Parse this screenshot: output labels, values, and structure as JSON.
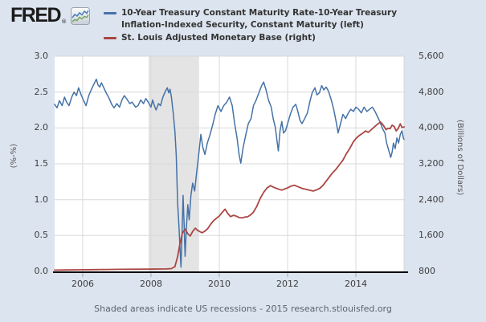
{
  "header": {
    "logo_text": "FRED",
    "logo_registered": "®",
    "legend": [
      {
        "lines": [
          "10-Year Treasury Constant Maturity Rate-10-Year Treasury",
          "Inflation-Indexed Security, Constant Maturity (left)"
        ]
      },
      {
        "lines": [
          "St. Louis Adjusted Monetary Base (right)"
        ]
      }
    ]
  },
  "footer": {
    "note": "Shaded areas indicate US recessions - 2015 research.stlouisfed.org"
  },
  "colors": {
    "page_bg": "#dce4ef",
    "series_blue": "#4572a7",
    "series_red": "#aa4643",
    "plot_bg": "#ffffff",
    "recession_band": "#e4e4e4",
    "gridline": "#d9d9d9",
    "axis_line": "#000000"
  },
  "chart_data": {
    "type": "line",
    "title": "",
    "x_axis": {
      "range": [
        2005.18,
        2015.41
      ],
      "tick_values": [
        2006,
        2008,
        2010,
        2012,
        2014
      ],
      "tick_labels": [
        "2006",
        "2008",
        "2010",
        "2012",
        "2014"
      ]
    },
    "left_axis": {
      "title": "(%-%)",
      "range": [
        0.0,
        3.0
      ],
      "tick_values": [
        3.0,
        2.5,
        2.0,
        1.5,
        1.0,
        0.5,
        0.0
      ],
      "tick_labels": [
        "3.0",
        "2.5",
        "2.0",
        "1.5",
        "1.0",
        "0.5",
        "0.0"
      ]
    },
    "right_axis": {
      "title": "(Billions of Dollars)",
      "range": [
        800,
        5600
      ],
      "tick_values": [
        5600,
        4800,
        4000,
        3200,
        2400,
        1600,
        800
      ],
      "tick_labels": [
        "5,600",
        "4,800",
        "4,000",
        "3,200",
        "2,400",
        "1,600",
        "800"
      ]
    },
    "recession_bands": [
      [
        2007.93,
        2009.41
      ]
    ],
    "grid": true,
    "legend_position": "top",
    "series": [
      {
        "name": "10-Year Treasury Constant Maturity Rate-10-Year Treasury Inflation-Indexed Security, Constant Maturity (left)",
        "axis": "left",
        "color": "#4572a7",
        "points": [
          [
            2005.18,
            2.33
          ],
          [
            2005.25,
            2.28
          ],
          [
            2005.32,
            2.38
          ],
          [
            2005.4,
            2.31
          ],
          [
            2005.47,
            2.43
          ],
          [
            2005.53,
            2.36
          ],
          [
            2005.6,
            2.31
          ],
          [
            2005.68,
            2.43
          ],
          [
            2005.75,
            2.5
          ],
          [
            2005.82,
            2.45
          ],
          [
            2005.88,
            2.56
          ],
          [
            2005.95,
            2.47
          ],
          [
            2006.02,
            2.39
          ],
          [
            2006.1,
            2.31
          ],
          [
            2006.18,
            2.45
          ],
          [
            2006.25,
            2.53
          ],
          [
            2006.32,
            2.6
          ],
          [
            2006.4,
            2.68
          ],
          [
            2006.45,
            2.6
          ],
          [
            2006.5,
            2.57
          ],
          [
            2006.55,
            2.63
          ],
          [
            2006.62,
            2.56
          ],
          [
            2006.7,
            2.48
          ],
          [
            2006.78,
            2.41
          ],
          [
            2006.85,
            2.33
          ],
          [
            2006.92,
            2.28
          ],
          [
            2007.0,
            2.34
          ],
          [
            2007.08,
            2.29
          ],
          [
            2007.15,
            2.39
          ],
          [
            2007.22,
            2.45
          ],
          [
            2007.3,
            2.4
          ],
          [
            2007.38,
            2.34
          ],
          [
            2007.45,
            2.36
          ],
          [
            2007.55,
            2.29
          ],
          [
            2007.62,
            2.31
          ],
          [
            2007.7,
            2.39
          ],
          [
            2007.78,
            2.34
          ],
          [
            2007.85,
            2.41
          ],
          [
            2007.92,
            2.36
          ],
          [
            2008.0,
            2.29
          ],
          [
            2008.05,
            2.39
          ],
          [
            2008.1,
            2.31
          ],
          [
            2008.15,
            2.25
          ],
          [
            2008.22,
            2.34
          ],
          [
            2008.28,
            2.31
          ],
          [
            2008.35,
            2.43
          ],
          [
            2008.42,
            2.51
          ],
          [
            2008.48,
            2.56
          ],
          [
            2008.52,
            2.49
          ],
          [
            2008.56,
            2.54
          ],
          [
            2008.6,
            2.43
          ],
          [
            2008.65,
            2.21
          ],
          [
            2008.7,
            1.96
          ],
          [
            2008.74,
            1.62
          ],
          [
            2008.78,
            0.96
          ],
          [
            2008.82,
            0.62
          ],
          [
            2008.85,
            0.32
          ],
          [
            2008.88,
            0.06
          ],
          [
            2008.91,
            0.52
          ],
          [
            2008.94,
            1.06
          ],
          [
            2008.97,
            0.66
          ],
          [
            2009.0,
            0.21
          ],
          [
            2009.04,
            0.62
          ],
          [
            2009.08,
            0.93
          ],
          [
            2009.12,
            0.72
          ],
          [
            2009.17,
            1.06
          ],
          [
            2009.22,
            1.23
          ],
          [
            2009.28,
            1.12
          ],
          [
            2009.34,
            1.39
          ],
          [
            2009.4,
            1.63
          ],
          [
            2009.46,
            1.91
          ],
          [
            2009.52,
            1.73
          ],
          [
            2009.58,
            1.63
          ],
          [
            2009.65,
            1.79
          ],
          [
            2009.72,
            1.89
          ],
          [
            2009.8,
            2.03
          ],
          [
            2009.88,
            2.19
          ],
          [
            2009.96,
            2.31
          ],
          [
            2010.05,
            2.23
          ],
          [
            2010.13,
            2.31
          ],
          [
            2010.22,
            2.36
          ],
          [
            2010.3,
            2.43
          ],
          [
            2010.38,
            2.31
          ],
          [
            2010.45,
            2.06
          ],
          [
            2010.52,
            1.86
          ],
          [
            2010.58,
            1.63
          ],
          [
            2010.63,
            1.51
          ],
          [
            2010.7,
            1.73
          ],
          [
            2010.78,
            1.91
          ],
          [
            2010.85,
            2.06
          ],
          [
            2010.93,
            2.13
          ],
          [
            2011.0,
            2.31
          ],
          [
            2011.08,
            2.39
          ],
          [
            2011.16,
            2.49
          ],
          [
            2011.24,
            2.59
          ],
          [
            2011.3,
            2.64
          ],
          [
            2011.37,
            2.53
          ],
          [
            2011.44,
            2.39
          ],
          [
            2011.52,
            2.29
          ],
          [
            2011.58,
            2.13
          ],
          [
            2011.64,
            2.01
          ],
          [
            2011.7,
            1.79
          ],
          [
            2011.73,
            1.68
          ],
          [
            2011.78,
            1.96
          ],
          [
            2011.83,
            2.09
          ],
          [
            2011.88,
            1.93
          ],
          [
            2011.94,
            1.96
          ],
          [
            2012.0,
            2.06
          ],
          [
            2012.08,
            2.19
          ],
          [
            2012.16,
            2.29
          ],
          [
            2012.24,
            2.33
          ],
          [
            2012.3,
            2.23
          ],
          [
            2012.36,
            2.11
          ],
          [
            2012.42,
            2.06
          ],
          [
            2012.5,
            2.13
          ],
          [
            2012.58,
            2.21
          ],
          [
            2012.65,
            2.36
          ],
          [
            2012.72,
            2.49
          ],
          [
            2012.8,
            2.56
          ],
          [
            2012.86,
            2.46
          ],
          [
            2012.93,
            2.49
          ],
          [
            2013.0,
            2.59
          ],
          [
            2013.06,
            2.53
          ],
          [
            2013.13,
            2.57
          ],
          [
            2013.2,
            2.51
          ],
          [
            2013.28,
            2.39
          ],
          [
            2013.35,
            2.26
          ],
          [
            2013.42,
            2.09
          ],
          [
            2013.48,
            1.93
          ],
          [
            2013.55,
            2.06
          ],
          [
            2013.62,
            2.19
          ],
          [
            2013.7,
            2.13
          ],
          [
            2013.78,
            2.21
          ],
          [
            2013.85,
            2.26
          ],
          [
            2013.93,
            2.23
          ],
          [
            2014.0,
            2.29
          ],
          [
            2014.08,
            2.26
          ],
          [
            2014.16,
            2.21
          ],
          [
            2014.24,
            2.29
          ],
          [
            2014.32,
            2.23
          ],
          [
            2014.4,
            2.26
          ],
          [
            2014.48,
            2.29
          ],
          [
            2014.56,
            2.23
          ],
          [
            2014.63,
            2.16
          ],
          [
            2014.7,
            2.09
          ],
          [
            2014.78,
            1.99
          ],
          [
            2014.85,
            1.93
          ],
          [
            2014.9,
            1.79
          ],
          [
            2014.96,
            1.69
          ],
          [
            2015.02,
            1.59
          ],
          [
            2015.06,
            1.66
          ],
          [
            2015.1,
            1.79
          ],
          [
            2015.15,
            1.71
          ],
          [
            2015.2,
            1.86
          ],
          [
            2015.25,
            1.79
          ],
          [
            2015.3,
            1.91
          ],
          [
            2015.35,
            1.96
          ],
          [
            2015.39,
            1.86
          ],
          [
            2015.41,
            1.84
          ]
        ]
      },
      {
        "name": "St. Louis Adjusted Monetary Base (right)",
        "axis": "right",
        "color": "#aa4643",
        "points": [
          [
            2005.18,
            828
          ],
          [
            2005.5,
            832
          ],
          [
            2005.9,
            836
          ],
          [
            2006.3,
            840
          ],
          [
            2006.7,
            843
          ],
          [
            2007.1,
            846
          ],
          [
            2007.5,
            849
          ],
          [
            2007.93,
            851
          ],
          [
            2008.2,
            853
          ],
          [
            2008.45,
            856
          ],
          [
            2008.6,
            862
          ],
          [
            2008.7,
            905
          ],
          [
            2008.78,
            1130
          ],
          [
            2008.84,
            1380
          ],
          [
            2008.92,
            1650
          ],
          [
            2009.0,
            1745
          ],
          [
            2009.08,
            1640
          ],
          [
            2009.15,
            1590
          ],
          [
            2009.22,
            1690
          ],
          [
            2009.3,
            1765
          ],
          [
            2009.36,
            1720
          ],
          [
            2009.41,
            1695
          ],
          [
            2009.5,
            1662
          ],
          [
            2009.58,
            1700
          ],
          [
            2009.66,
            1752
          ],
          [
            2009.75,
            1852
          ],
          [
            2009.83,
            1930
          ],
          [
            2009.92,
            1988
          ],
          [
            2010.0,
            2038
          ],
          [
            2010.08,
            2112
          ],
          [
            2010.17,
            2188
          ],
          [
            2010.25,
            2092
          ],
          [
            2010.33,
            2022
          ],
          [
            2010.42,
            2052
          ],
          [
            2010.5,
            2032
          ],
          [
            2010.58,
            2002
          ],
          [
            2010.67,
            1992
          ],
          [
            2010.75,
            2012
          ],
          [
            2010.83,
            2018
          ],
          [
            2010.92,
            2062
          ],
          [
            2011.0,
            2122
          ],
          [
            2011.1,
            2252
          ],
          [
            2011.2,
            2432
          ],
          [
            2011.3,
            2562
          ],
          [
            2011.4,
            2662
          ],
          [
            2011.5,
            2712
          ],
          [
            2011.58,
            2682
          ],
          [
            2011.67,
            2652
          ],
          [
            2011.75,
            2632
          ],
          [
            2011.83,
            2612
          ],
          [
            2011.92,
            2642
          ],
          [
            2012.0,
            2662
          ],
          [
            2012.1,
            2702
          ],
          [
            2012.2,
            2722
          ],
          [
            2012.3,
            2692
          ],
          [
            2012.42,
            2652
          ],
          [
            2012.54,
            2632
          ],
          [
            2012.63,
            2612
          ],
          [
            2012.75,
            2592
          ],
          [
            2012.86,
            2622
          ],
          [
            2012.95,
            2657
          ],
          [
            2013.04,
            2722
          ],
          [
            2013.12,
            2802
          ],
          [
            2013.22,
            2902
          ],
          [
            2013.32,
            3002
          ],
          [
            2013.42,
            3082
          ],
          [
            2013.52,
            3182
          ],
          [
            2013.62,
            3282
          ],
          [
            2013.72,
            3422
          ],
          [
            2013.82,
            3542
          ],
          [
            2013.92,
            3682
          ],
          [
            2014.0,
            3762
          ],
          [
            2014.1,
            3832
          ],
          [
            2014.2,
            3882
          ],
          [
            2014.28,
            3932
          ],
          [
            2014.36,
            3902
          ],
          [
            2014.45,
            3962
          ],
          [
            2014.54,
            4022
          ],
          [
            2014.63,
            4082
          ],
          [
            2014.72,
            4132
          ],
          [
            2014.8,
            4062
          ],
          [
            2014.88,
            3962
          ],
          [
            2014.94,
            3992
          ],
          [
            2015.0,
            3982
          ],
          [
            2015.06,
            4062
          ],
          [
            2015.12,
            4032
          ],
          [
            2015.18,
            3932
          ],
          [
            2015.24,
            3992
          ],
          [
            2015.3,
            4092
          ],
          [
            2015.35,
            4012
          ],
          [
            2015.41,
            4022
          ]
        ]
      }
    ]
  }
}
